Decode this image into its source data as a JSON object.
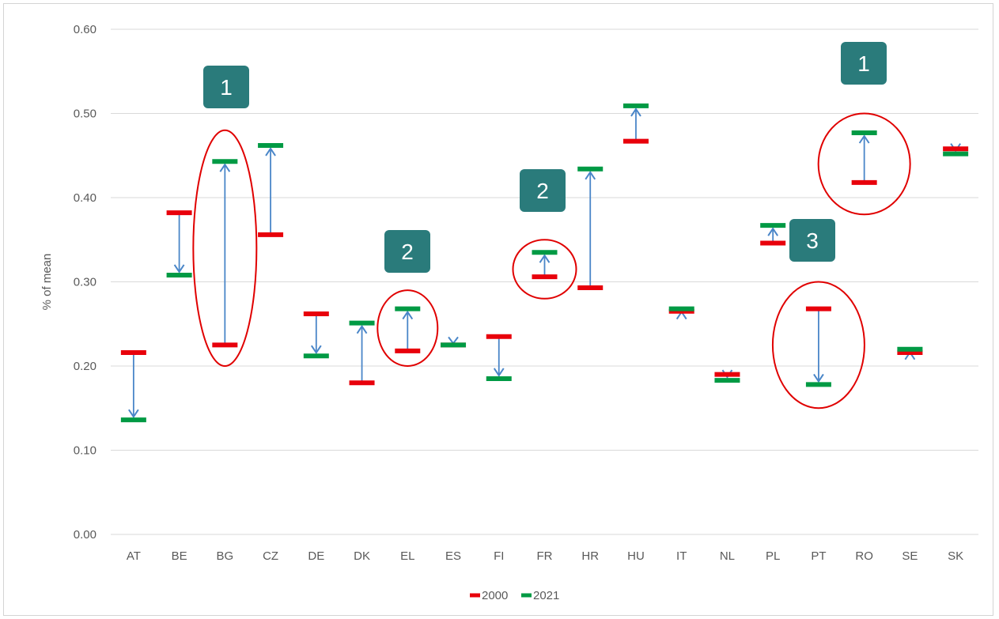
{
  "chart_data": {
    "type": "dumbbell",
    "ylabel": "% of mean",
    "ylim": [
      0,
      0.6
    ],
    "yticks": [
      "0.00",
      "0.10",
      "0.20",
      "0.30",
      "0.40",
      "0.50",
      "0.60"
    ],
    "categories": [
      "AT",
      "BE",
      "BG",
      "CZ",
      "DE",
      "DK",
      "EL",
      "ES",
      "FI",
      "FR",
      "HR",
      "HU",
      "IT",
      "NL",
      "PL",
      "PT",
      "RO",
      "SE",
      "SK"
    ],
    "series": [
      {
        "name": "2000",
        "color": "#e8000b",
        "values": [
          0.216,
          0.382,
          0.225,
          0.356,
          0.262,
          0.18,
          0.218,
          0.225,
          0.235,
          0.306,
          0.293,
          0.467,
          0.265,
          0.19,
          0.346,
          0.268,
          0.418,
          0.216,
          0.458
        ]
      },
      {
        "name": "2021",
        "color": "#009a44",
        "values": [
          0.136,
          0.308,
          0.443,
          0.462,
          0.212,
          0.251,
          0.268,
          0.225,
          0.185,
          0.335,
          0.434,
          0.509,
          0.268,
          0.183,
          0.367,
          0.178,
          0.477,
          0.22,
          0.452
        ]
      }
    ],
    "arrow_color": "#4a86c8",
    "grid": true,
    "legend_position": "bottom",
    "annotations": {
      "circles": [
        {
          "category": "BG",
          "low": 0.2,
          "high": 0.48
        },
        {
          "category": "EL",
          "low": 0.2,
          "high": 0.29
        },
        {
          "category": "FR",
          "low": 0.28,
          "high": 0.35
        },
        {
          "category": "PT",
          "low": 0.15,
          "high": 0.3
        },
        {
          "category": "RO",
          "low": 0.38,
          "high": 0.5
        }
      ],
      "badges": [
        {
          "text": "1",
          "color": "#2a7b7b"
        },
        {
          "text": "2",
          "color": "#2a7b7b"
        },
        {
          "text": "2",
          "color": "#2a7b7b"
        },
        {
          "text": "3",
          "color": "#2a7b7b"
        },
        {
          "text": "1",
          "color": "#2a7b7b"
        }
      ],
      "circle_color": "#e00000"
    }
  }
}
